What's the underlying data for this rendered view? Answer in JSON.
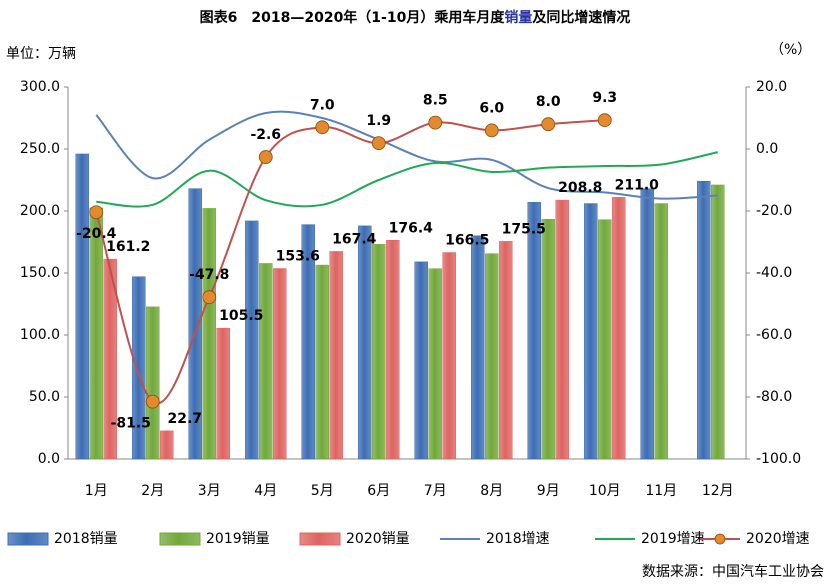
{
  "chart_data": {
    "type": "bar-line",
    "title": [
      "图表6　2018—2020年（1-10月）乘用车月度",
      "销量",
      "及同比增速情况"
    ],
    "y_label": "单位：万辆",
    "y2_label": "（%）",
    "source": "数据来源：中国汽车工业协会",
    "categories": [
      "1月",
      "2月",
      "3月",
      "4月",
      "5月",
      "6月",
      "7月",
      "8月",
      "9月",
      "10月",
      "11月",
      "12月"
    ],
    "ylim": [
      0,
      300
    ],
    "yticks": [
      {
        "value": 0,
        "label": "0.0"
      },
      {
        "value": 50,
        "label": "50.0"
      },
      {
        "value": 100,
        "label": "100.0"
      },
      {
        "value": 150,
        "label": "150.0"
      },
      {
        "value": 200,
        "label": "200.0"
      },
      {
        "value": 250,
        "label": "250.0"
      },
      {
        "value": 300,
        "label": "300.0"
      }
    ],
    "y2lim": [
      -100,
      20
    ],
    "y2ticks": [
      {
        "value": -100,
        "label": "-100.0"
      },
      {
        "value": -80,
        "label": "-80.0"
      },
      {
        "value": -60,
        "label": "-60.0"
      },
      {
        "value": -40,
        "label": "-40.0"
      },
      {
        "value": -20,
        "label": "-20.0"
      },
      {
        "value": 0,
        "label": "0.0"
      },
      {
        "value": 20,
        "label": "20.0"
      }
    ],
    "series": [
      {
        "name": "2018销量",
        "kind": "bar",
        "color": "#3c6db4",
        "values": [
          246,
          147,
          218,
          192,
          189,
          188,
          159,
          180,
          207,
          206,
          218,
          224
        ]
      },
      {
        "name": "2019销量",
        "kind": "bar",
        "color": "#71a83a",
        "values": [
          202.5,
          122.7,
          202.1,
          157.7,
          156.4,
          173.1,
          153.5,
          165.6,
          193.3,
          193.0,
          206,
          221
        ]
      },
      {
        "name": "2020销量",
        "kind": "bar",
        "color": "#de6461",
        "values": [
          161.2,
          22.7,
          105.5,
          153.6,
          167.4,
          176.4,
          166.5,
          175.5,
          208.8,
          211.0,
          null,
          null
        ],
        "value_labels": [
          "161.2",
          "22.7",
          "105.5",
          "153.6",
          "167.4",
          "176.4",
          "166.5",
          "175.5",
          "208.8",
          "211.0",
          null,
          null
        ],
        "label_color": "#2832a8"
      },
      {
        "name": "2018增速",
        "kind": "line",
        "axis": "y2",
        "color": "#5a82b4",
        "values": [
          11,
          -9.4,
          3,
          11.6,
          10,
          3,
          -4,
          -3.5,
          -12.6,
          -14,
          -16,
          -15
        ]
      },
      {
        "name": "2019增速",
        "kind": "line",
        "axis": "y2",
        "color": "#1faa55",
        "values": [
          -17,
          -18,
          -7,
          -16.5,
          -18,
          -10,
          -4.5,
          -7.4,
          -6,
          -5.5,
          -5,
          -1
        ]
      },
      {
        "name": "2020增速",
        "kind": "line",
        "axis": "y2",
        "color": "#c0504d",
        "marker": "#e38b2c",
        "values": [
          -20.4,
          -81.5,
          -47.8,
          -2.6,
          7.0,
          1.9,
          8.5,
          6.0,
          8.0,
          9.3,
          null,
          null
        ],
        "value_labels": [
          "-20.4",
          "-81.5",
          "-47.8",
          "-2.6",
          "7.0",
          "1.9",
          "8.5",
          "6.0",
          "8.0",
          "9.3",
          null,
          null
        ]
      }
    ]
  }
}
